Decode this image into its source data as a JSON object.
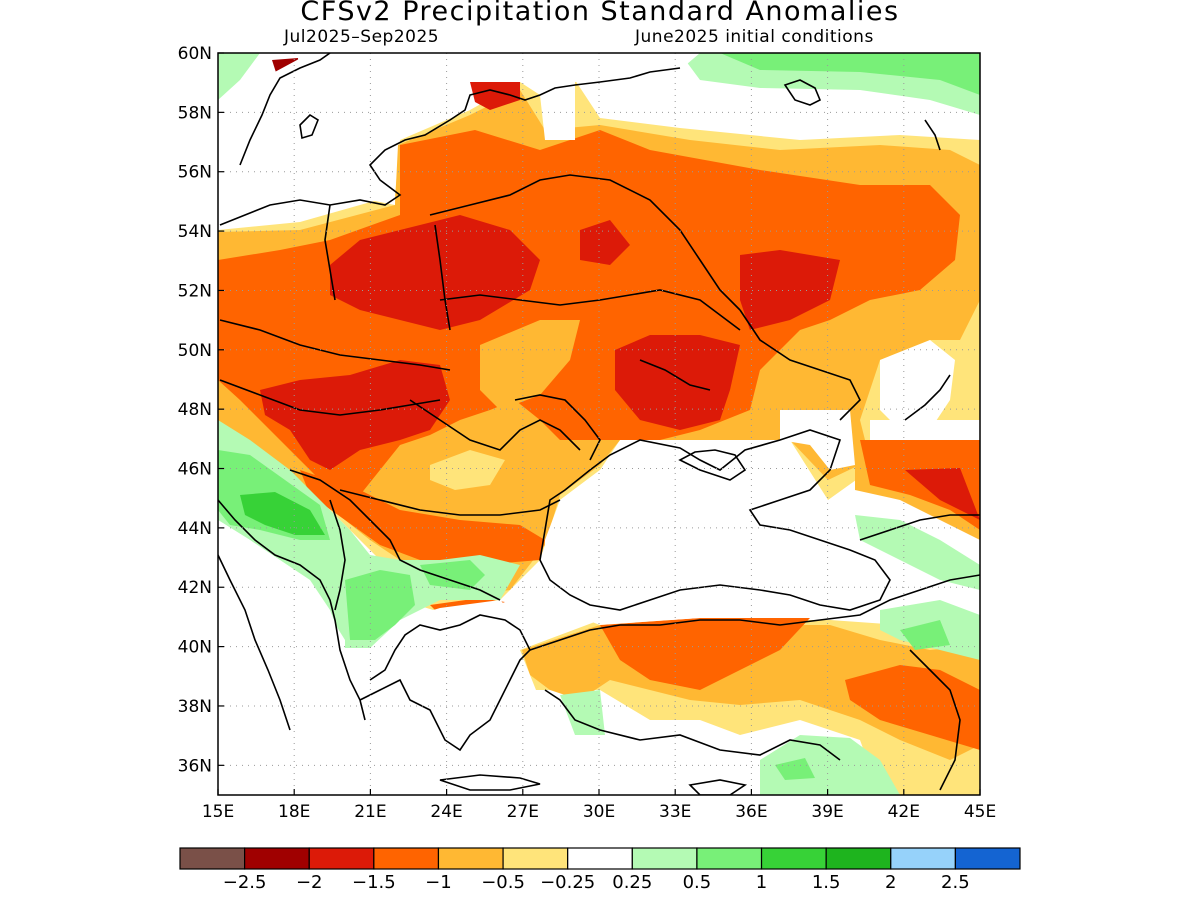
{
  "title": "CFSv2 Precipitation Standard Anomalies",
  "subtitle_left": "Jul2025–Sep2025",
  "subtitle_right": "June2025 initial conditions",
  "map": {
    "lon_range": [
      15,
      45
    ],
    "lat_range": [
      35,
      60
    ],
    "x_ticks": [
      "15E",
      "18E",
      "21E",
      "24E",
      "27E",
      "30E",
      "33E",
      "36E",
      "39E",
      "42E",
      "45E"
    ],
    "y_ticks": [
      "60N",
      "58N",
      "56N",
      "54N",
      "52N",
      "50N",
      "48N",
      "46N",
      "44N",
      "42N",
      "40N",
      "38N",
      "36N"
    ],
    "grid": "dotted"
  },
  "colorbar": {
    "colors": [
      "#7a5048",
      "#a00000",
      "#dc1a08",
      "#ff6400",
      "#ffb833",
      "#ffe47a",
      "#ffffff",
      "#b4fab4",
      "#78f078",
      "#37d237",
      "#1eb41e",
      "#96d2fa",
      "#1464d2"
    ],
    "labels": [
      "−2.5",
      "−2",
      "−1.5",
      "−1",
      "−0.5",
      "−0.25",
      "0.25",
      "0.5",
      "1",
      "1.5",
      "2",
      "2.5"
    ]
  },
  "anomaly_regions": [
    {
      "level": "-0.5",
      "color": "#ffb833"
    },
    {
      "level": "-1",
      "color": "#ff6400"
    },
    {
      "level": "-1.5",
      "color": "#dc1a08"
    },
    {
      "level": "-2",
      "color": "#a00000"
    },
    {
      "level": "0.5",
      "color": "#78f078"
    },
    {
      "level": "1",
      "color": "#37d237"
    }
  ]
}
